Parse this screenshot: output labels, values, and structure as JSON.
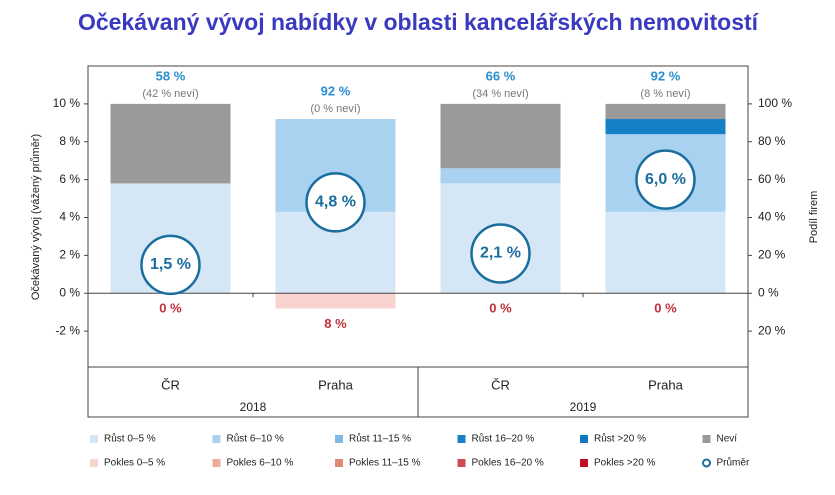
{
  "chart_data": {
    "type": "bar",
    "title": "Očekávaný vývoj nabídky v oblasti kancelářských nemovitostí",
    "y_label": "Očekávaný vývoj (vážený průměr)",
    "y2_label": "Podíl firem",
    "categories": [
      "ČR",
      "Praha",
      "ČR",
      "Praha"
    ],
    "group_labels": [
      "2018",
      "2019"
    ],
    "top_labels": [
      "58 %",
      "92 %",
      "66 %",
      "92 %"
    ],
    "top_sublabels": [
      "(42 % neví)",
      "(0 % neví)",
      "(34 % neví)",
      "(8 % neví)"
    ],
    "bottom_labels": [
      "0 %",
      "8 %",
      "0 %",
      "0 %"
    ],
    "ylim": [
      -4,
      12
    ],
    "yticks": [
      {
        "value": -2,
        "label": "-2 %"
      },
      {
        "value": 0,
        "label": "0 %"
      },
      {
        "value": 2,
        "label": "2 %"
      },
      {
        "value": 4,
        "label": "4 %"
      },
      {
        "value": 6,
        "label": "6 %"
      },
      {
        "value": 8,
        "label": "8 %"
      },
      {
        "value": 10,
        "label": "10 %"
      }
    ],
    "y2lim": [
      -40,
      120
    ],
    "y2ticks": [
      {
        "value": -20,
        "label": "20 %"
      },
      {
        "value": 0,
        "label": "0 %"
      },
      {
        "value": 20,
        "label": "20 %"
      },
      {
        "value": 40,
        "label": "40 %"
      },
      {
        "value": 60,
        "label": "60 %"
      },
      {
        "value": 80,
        "label": "80 %"
      },
      {
        "value": 100,
        "label": "100 %"
      }
    ],
    "series": [
      {
        "name": "Růst 0–5 %",
        "color": "#d5e6f7",
        "axis": "y2",
        "values": [
          58,
          43,
          58,
          43
        ]
      },
      {
        "name": "Růst 6–10 %",
        "color": "#a9d1f0",
        "axis": "y2",
        "values": [
          0,
          49,
          8,
          41
        ]
      },
      {
        "name": "Růst 11–15 %",
        "color": "#7fb9e6",
        "axis": "y2",
        "values": [
          0,
          0,
          0,
          0
        ]
      },
      {
        "name": "Růst 16–20 %",
        "color": "#1580c8",
        "axis": "y2",
        "values": [
          0,
          0,
          0,
          8
        ]
      },
      {
        "name": "Růst >20 %",
        "color": "#0e79c2",
        "axis": "y2",
        "values": [
          0,
          0,
          0,
          0
        ]
      },
      {
        "name": "Neví",
        "color": "#9a9a9a",
        "axis": "y2",
        "values": [
          42,
          0,
          34,
          8
        ]
      },
      {
        "name": "Pokles 0–5 %",
        "color": "#f8d3d0",
        "axis": "y2",
        "values": [
          0,
          -8,
          0,
          0
        ]
      },
      {
        "name": "Pokles 6–10 %",
        "color": "#ebab9e",
        "axis": "y2",
        "values": [
          0,
          0,
          0,
          0
        ]
      },
      {
        "name": "Pokles 11–15 %",
        "color": "#e08878",
        "axis": "y2",
        "values": [
          0,
          0,
          0,
          0
        ]
      },
      {
        "name": "Pokles 16–20 %",
        "color": "#d04c50",
        "axis": "y2",
        "values": [
          0,
          0,
          0,
          0
        ]
      },
      {
        "name": "Pokles >20 %",
        "color": "#c0102a",
        "axis": "y2",
        "values": [
          0,
          0,
          0,
          0
        ]
      },
      {
        "name": "Průměr",
        "color": "#1a6e9e",
        "axis": "y",
        "type": "circle",
        "values": [
          1.5,
          4.8,
          2.1,
          6.0
        ],
        "value_labels": [
          "1,5 %",
          "4,8 %",
          "2,1 %",
          "6,0 %"
        ]
      }
    ]
  }
}
